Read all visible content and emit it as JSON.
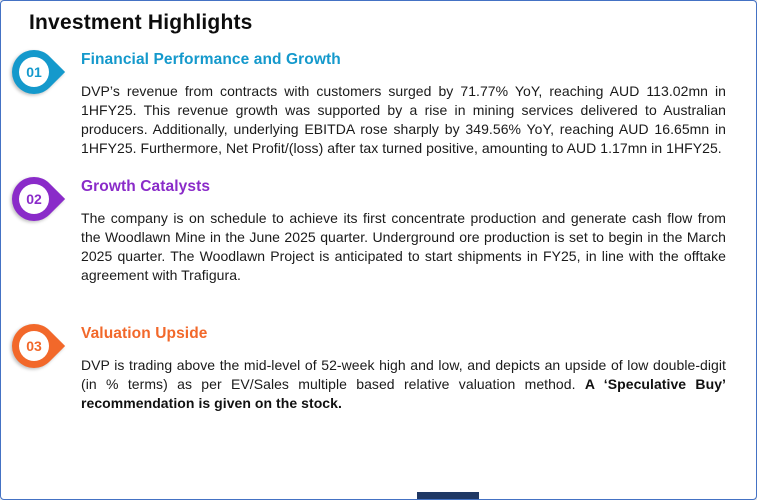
{
  "page": {
    "title": "Investment Highlights",
    "border_color": "#4472c4",
    "background_color": "#ffffff",
    "bottom_bar_color": "#1f3864"
  },
  "items": [
    {
      "number": "01",
      "color": "#1499cc",
      "heading": "Financial Performance and Growth",
      "body": "DVP’s revenue from contracts with customers surged by 71.77% YoY, reaching AUD 113.02mn in 1HFY25. This revenue growth was supported by a rise in mining services delivered to Australian producers. Additionally, underlying EBITDA rose sharply by 349.56% YoY, reaching AUD 16.65mn in 1HFY25. Furthermore, Net Profit/(loss) after tax turned positive, amounting to AUD 1.17mn in 1HFY25."
    },
    {
      "number": "02",
      "color": "#8a2bc9",
      "heading": "Growth Catalysts",
      "body": "The company is on schedule to achieve its first concentrate production and generate cash flow from the Woodlawn Mine in the June 2025 quarter. Underground ore production is set to begin in the March 2025 quarter. The Woodlawn Project is anticipated to start shipments in FY25, in line with the offtake agreement with Trafigura."
    },
    {
      "number": "03",
      "color": "#f2682a",
      "heading": "Valuation Upside",
      "body": "DVP is trading above the mid-level of 52-week high and low, and depicts an upside of low double-digit (in % terms) as per EV/Sales multiple based relative valuation method.",
      "body_bold": "A ‘Speculative Buy’ recommendation is given on the stock."
    }
  ]
}
